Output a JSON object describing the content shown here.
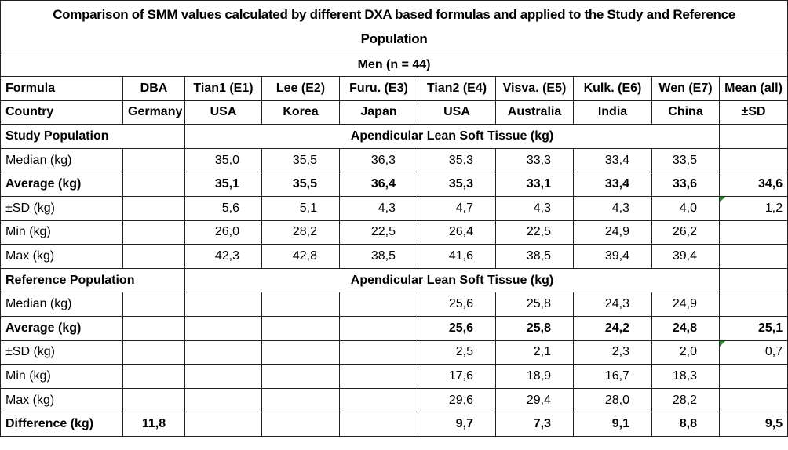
{
  "title": "Comparison of SMM values calculated by different DXA based formulas and applied to the Study and Reference Population",
  "subtitle": "Men (n = 44)",
  "header_rows": [
    [
      "Formula",
      "DBA",
      "Tian1 (E1)",
      "Lee (E2)",
      "Furu. (E3)",
      "Tian2 (E4)",
      "Visva. (E5)",
      "Kulk. (E6)",
      "Wen (E7)",
      "Mean (all)"
    ],
    [
      "Country",
      "Germany",
      "USA",
      "Korea",
      "Japan",
      "USA",
      "Australia",
      "India",
      "China",
      "±SD"
    ]
  ],
  "sections": [
    {
      "label": "Study Population",
      "span_label": "Apendicular Lean Soft Tissue (kg)",
      "rows": [
        {
          "label": "Median (kg)",
          "values": [
            null,
            "35,0",
            "35,5",
            "36,3",
            "35,3",
            "33,3",
            "33,4",
            "33,5",
            null
          ]
        },
        {
          "label": "Average (kg)",
          "bold": true,
          "values": [
            null,
            "35,1",
            "35,5",
            "36,4",
            "35,3",
            "33,1",
            "33,4",
            "33,6",
            "34,6"
          ]
        },
        {
          "label": "±SD (kg)",
          "values": [
            null,
            "5,6",
            "5,1",
            "4,3",
            "4,7",
            "4,3",
            "4,3",
            "4,0",
            "1,2"
          ]
        },
        {
          "label": "Min (kg)",
          "values": [
            null,
            "26,0",
            "28,2",
            "22,5",
            "26,4",
            "22,5",
            "24,9",
            "26,2",
            null
          ]
        },
        {
          "label": "Max (kg)",
          "values": [
            null,
            "42,3",
            "42,8",
            "38,5",
            "41,6",
            "38,5",
            "39,4",
            "39,4",
            null
          ]
        }
      ]
    },
    {
      "label": "Reference Population",
      "span_label": "Apendicular Lean Soft Tissue (kg)",
      "rows": [
        {
          "label": "Median (kg)",
          "values": [
            null,
            null,
            null,
            null,
            "25,6",
            "25,8",
            "24,3",
            "24,9",
            null
          ]
        },
        {
          "label": "Average (kg)",
          "bold": true,
          "values": [
            null,
            null,
            null,
            null,
            "25,6",
            "25,8",
            "24,2",
            "24,8",
            "25,1"
          ]
        },
        {
          "label": "±SD (kg)",
          "values": [
            null,
            null,
            null,
            null,
            "2,5",
            "2,1",
            "2,3",
            "2,0",
            "0,7"
          ]
        },
        {
          "label": "Min (kg)",
          "values": [
            null,
            null,
            null,
            null,
            "17,6",
            "18,9",
            "16,7",
            "18,3",
            null
          ]
        },
        {
          "label": "Max (kg)",
          "values": [
            null,
            null,
            null,
            null,
            "29,6",
            "29,4",
            "28,0",
            "28,2",
            null
          ]
        }
      ]
    }
  ],
  "footer": {
    "label": "Difference (kg)",
    "bold": true,
    "values": [
      "11,8",
      null,
      null,
      null,
      "9,7",
      "7,3",
      "9,1",
      "8,8",
      "9,5"
    ]
  }
}
